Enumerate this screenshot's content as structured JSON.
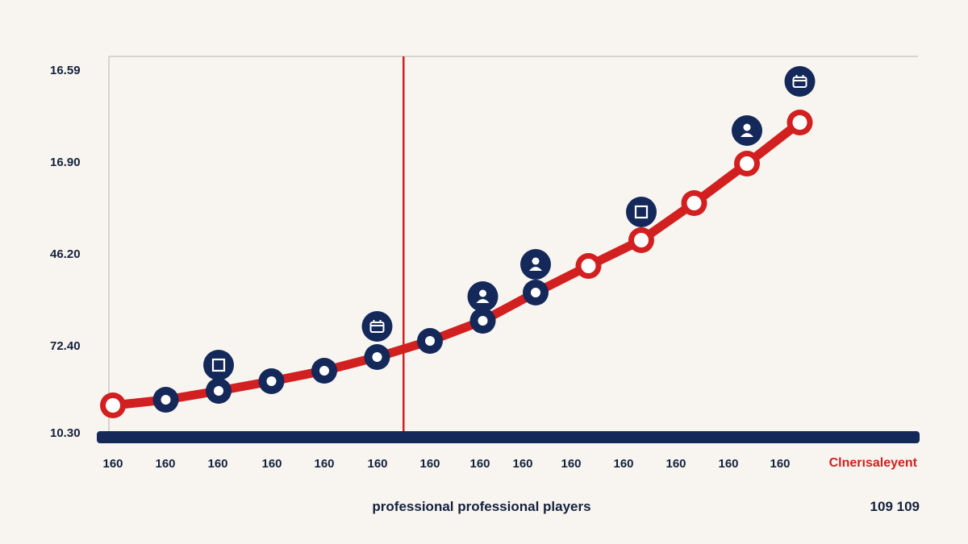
{
  "chart_data": {
    "type": "line",
    "title": "",
    "y_tick_labels": [
      "16.59",
      "16.90",
      "46.20",
      "72.40",
      "10.30"
    ],
    "x_tick_labels": [
      "160",
      "160",
      "160",
      "160",
      "160",
      "160",
      "160",
      "160",
      "160",
      "160",
      "160",
      "160",
      "160",
      "160"
    ],
    "xlabel": "professional  professional players",
    "series_label": "Clnerısaleyent",
    "corner_label": "109 109",
    "ylim": [
      0,
      4
    ],
    "reference_line_index": 5.5,
    "series": [
      {
        "color": "#d21f1f",
        "values": [
          0.15,
          0.22,
          0.33,
          0.45,
          0.58,
          0.75,
          0.95,
          1.2,
          1.55,
          1.88,
          2.2,
          2.66,
          3.15,
          3.66
        ]
      }
    ],
    "markers": [
      {
        "index": 0,
        "style": "red"
      },
      {
        "index": 1,
        "style": "navy"
      },
      {
        "index": 2,
        "style": "navy"
      },
      {
        "index": 3,
        "style": "navy"
      },
      {
        "index": 4,
        "style": "navy"
      },
      {
        "index": 5,
        "style": "navy"
      },
      {
        "index": 6,
        "style": "navy"
      },
      {
        "index": 7,
        "style": "navy"
      },
      {
        "index": 8,
        "style": "navy"
      },
      {
        "index": 9,
        "style": "red"
      },
      {
        "index": 10,
        "style": "red"
      },
      {
        "index": 11,
        "style": "red"
      },
      {
        "index": 12,
        "style": "red"
      },
      {
        "index": 13,
        "style": "red"
      }
    ],
    "icon_callouts": [
      {
        "index": 2,
        "icon": "square-icon",
        "value": 0.65
      },
      {
        "index": 5,
        "icon": "calendar-icon",
        "value": 1.13
      },
      {
        "index": 7,
        "icon": "person-icon",
        "value": 1.5
      },
      {
        "index": 8,
        "icon": "person-icon",
        "value": 1.9
      },
      {
        "index": 10,
        "icon": "square-icon",
        "value": 2.55
      },
      {
        "index": 12,
        "icon": "person-icon",
        "value": 3.56
      },
      {
        "index": 13,
        "icon": "calendar-icon",
        "value": 4.17
      }
    ],
    "colors": {
      "line": "#d21f1f",
      "navy": "#14285a",
      "axis": "#14285a",
      "grid": "#c9c9c9"
    }
  }
}
